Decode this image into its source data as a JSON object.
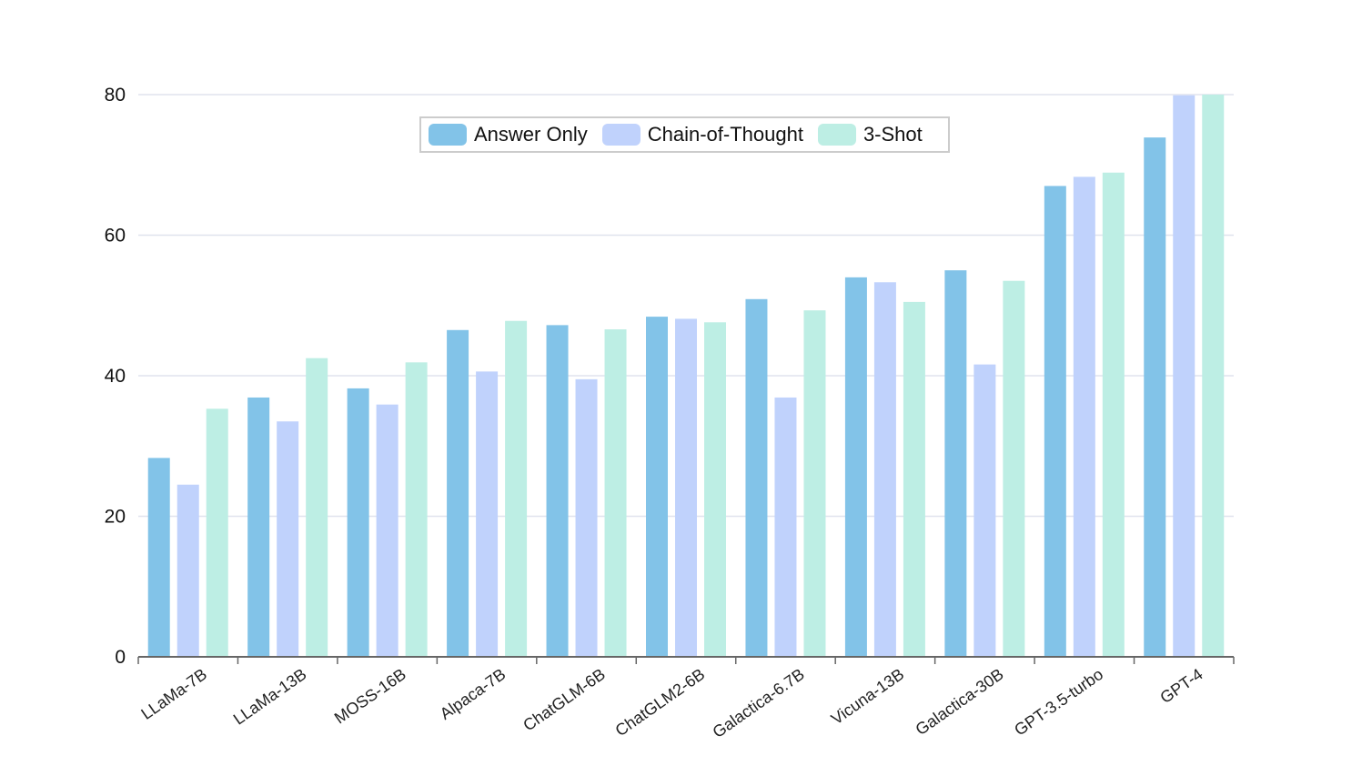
{
  "chart_data": {
    "type": "bar",
    "title": "",
    "xlabel": "",
    "ylabel": "",
    "ylim": [
      0,
      80
    ],
    "yticks": [
      0,
      20,
      40,
      60,
      80
    ],
    "grid": true,
    "legend_position": "top-center",
    "categories": [
      "LLaMa-7B",
      "LLaMa-13B",
      "MOSS-16B",
      "Alpaca-7B",
      "ChatGLM-6B",
      "ChatGLM2-6B",
      "Galactica-6.7B",
      "Vicuna-13B",
      "Galactica-30B",
      "GPT-3.5-turbo",
      "GPT-4"
    ],
    "series": [
      {
        "name": "Answer Only",
        "color": "#82c3e8",
        "values": [
          28.3,
          36.9,
          38.2,
          46.5,
          47.2,
          48.4,
          50.9,
          54.0,
          55.0,
          67.0,
          73.9
        ]
      },
      {
        "name": "Chain-of-Thought",
        "color": "#c0d2fc",
        "values": [
          24.5,
          33.5,
          35.9,
          40.6,
          39.5,
          48.1,
          36.9,
          53.3,
          41.6,
          68.3,
          79.9
        ]
      },
      {
        "name": "3-Shot",
        "color": "#bdeee4",
        "values": [
          35.3,
          42.5,
          41.9,
          47.8,
          46.6,
          47.6,
          49.3,
          50.5,
          53.5,
          68.9,
          80.0
        ]
      }
    ]
  },
  "legend": {
    "items": [
      {
        "label": "Answer Only",
        "color": "#82c3e8"
      },
      {
        "label": "Chain-of-Thought",
        "color": "#c0d2fc"
      },
      {
        "label": "3-Shot",
        "color": "#bdeee4"
      }
    ]
  },
  "colors": {
    "grid": "#e0e3ee",
    "axis": "#666666"
  }
}
